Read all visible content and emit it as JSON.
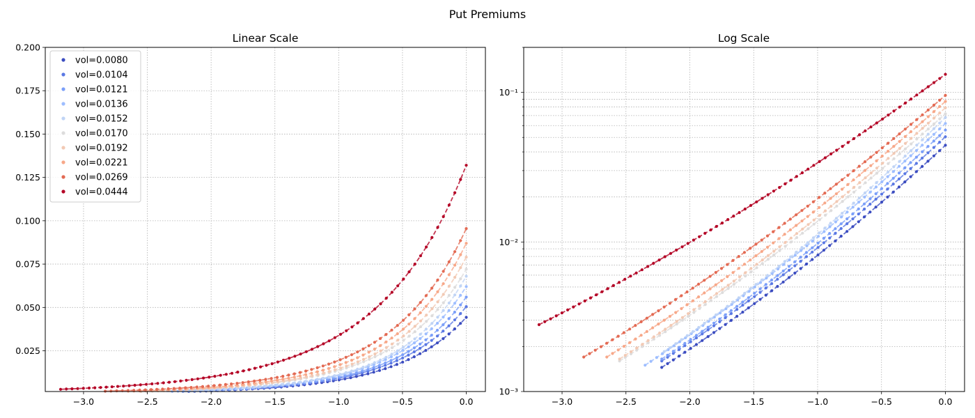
{
  "figure": {
    "title": "Put Premiums"
  },
  "chart_data": [
    {
      "type": "scatter",
      "title": "Linear Scale",
      "xlabel": "",
      "ylabel": "",
      "xlim": [
        -3.3,
        0.15
      ],
      "ylim": [
        0.0015,
        0.2
      ],
      "yscale": "linear",
      "xticks": [
        "−3.0",
        "−2.5",
        "−2.0",
        "−1.5",
        "−1.0",
        "−0.5",
        "0.0"
      ],
      "yticks": [
        "0.025",
        "0.050",
        "0.075",
        "0.100",
        "0.125",
        "0.150",
        "0.175",
        "0.200"
      ],
      "grid": true,
      "legend": "upper-left",
      "style": "markers with dashed connecting line per series"
    },
    {
      "type": "scatter",
      "title": "Log Scale",
      "xlabel": "",
      "ylabel": "",
      "xlim": [
        -3.3,
        0.15
      ],
      "ylim": [
        0.001,
        0.2
      ],
      "yscale": "log",
      "xticks": [
        "−3.0",
        "−2.5",
        "−2.0",
        "−1.5",
        "−1.0",
        "−0.5",
        "0.0"
      ],
      "yticks": [
        "10⁻³",
        "10⁻²",
        "10⁻¹"
      ],
      "grid": true,
      "legend": "none"
    }
  ],
  "series": [
    {
      "name": "vol=0.0080",
      "color": "#3b4cc0",
      "x_range": [
        -2.22,
        0.0
      ],
      "y_end": 0.0443,
      "y_start": 0.00145
    },
    {
      "name": "vol=0.0104",
      "color": "#5a78e4",
      "x_range": [
        -2.22,
        0.0
      ],
      "y_end": 0.0505,
      "y_start": 0.0016
    },
    {
      "name": "vol=0.0121",
      "color": "#7b9ff9",
      "x_range": [
        -2.22,
        0.0
      ],
      "y_end": 0.056,
      "y_start": 0.00165
    },
    {
      "name": "vol=0.0136",
      "color": "#9ebeff",
      "x_range": [
        -2.35,
        0.0
      ],
      "y_end": 0.062,
      "y_start": 0.0015
    },
    {
      "name": "vol=0.0152",
      "color": "#c0d4f5",
      "x_range": [
        -2.2,
        0.0
      ],
      "y_end": 0.068,
      "y_start": 0.00185
    },
    {
      "name": "vol=0.0170",
      "color": "#dddcdc",
      "x_range": [
        -2.55,
        0.0
      ],
      "y_end": 0.072,
      "y_start": 0.0016
    },
    {
      "name": "vol=0.0192",
      "color": "#f2c9b4",
      "x_range": [
        -2.55,
        0.0
      ],
      "y_end": 0.079,
      "y_start": 0.00165
    },
    {
      "name": "vol=0.0221",
      "color": "#f7a889",
      "x_range": [
        -2.65,
        0.0
      ],
      "y_end": 0.087,
      "y_start": 0.0017
    },
    {
      "name": "vol=0.0269",
      "color": "#e36a53",
      "x_range": [
        -2.83,
        0.0
      ],
      "y_end": 0.0955,
      "y_start": 0.0017
    },
    {
      "name": "vol=0.0444",
      "color": "#b40426",
      "x_range": [
        -3.18,
        0.0
      ],
      "y_end": 0.132,
      "y_start": 0.0028
    }
  ]
}
